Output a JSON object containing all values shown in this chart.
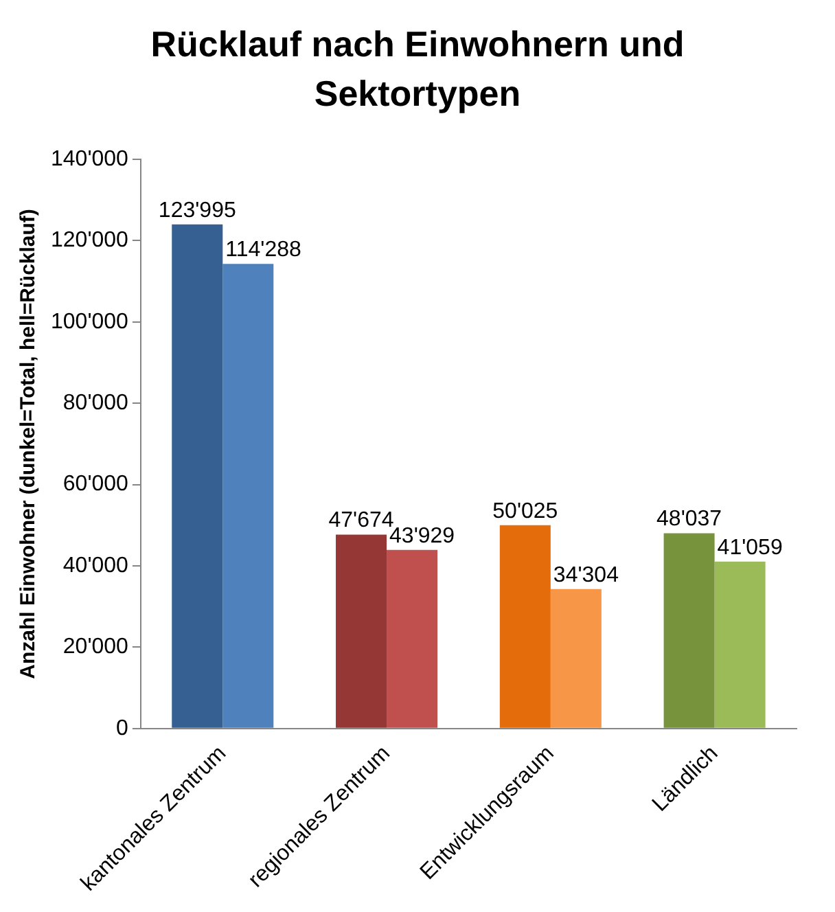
{
  "chart_data": {
    "type": "bar",
    "title": "Rücklauf nach Einwohnern und Sektortypen",
    "ylabel": "Anzahl Einwohner (dunkel=Total, hell=Rücklauf)",
    "categories": [
      "kantonales Zentrum",
      "regionales Zentrum",
      "Entwicklungsraum",
      "Ländlich"
    ],
    "series": [
      {
        "colors": [
          "#376092",
          "#953735",
          "#e46c0a",
          "#77933c"
        ],
        "values": [
          123995,
          47674,
          50025,
          48037
        ],
        "value_labels": [
          "123'995",
          "47'674",
          "50'025",
          "48'037"
        ]
      },
      {
        "colors": [
          "#4f81bd",
          "#c0504d",
          "#f79646",
          "#9bbb59"
        ],
        "values": [
          114288,
          43929,
          34304,
          41059
        ],
        "value_labels": [
          "114'288",
          "43'929",
          "34'304",
          "41'059"
        ]
      }
    ],
    "ylim": [
      0,
      140000
    ],
    "yticks": [
      {
        "value": 0,
        "label": "0"
      },
      {
        "value": 20000,
        "label": "20'000"
      },
      {
        "value": 40000,
        "label": "40'000"
      },
      {
        "value": 60000,
        "label": "60'000"
      },
      {
        "value": 80000,
        "label": "80'000"
      },
      {
        "value": 100000,
        "label": "100'000"
      },
      {
        "value": 120000,
        "label": "120'000"
      },
      {
        "value": 140000,
        "label": "140'000"
      }
    ],
    "grid": false,
    "legend": false
  }
}
